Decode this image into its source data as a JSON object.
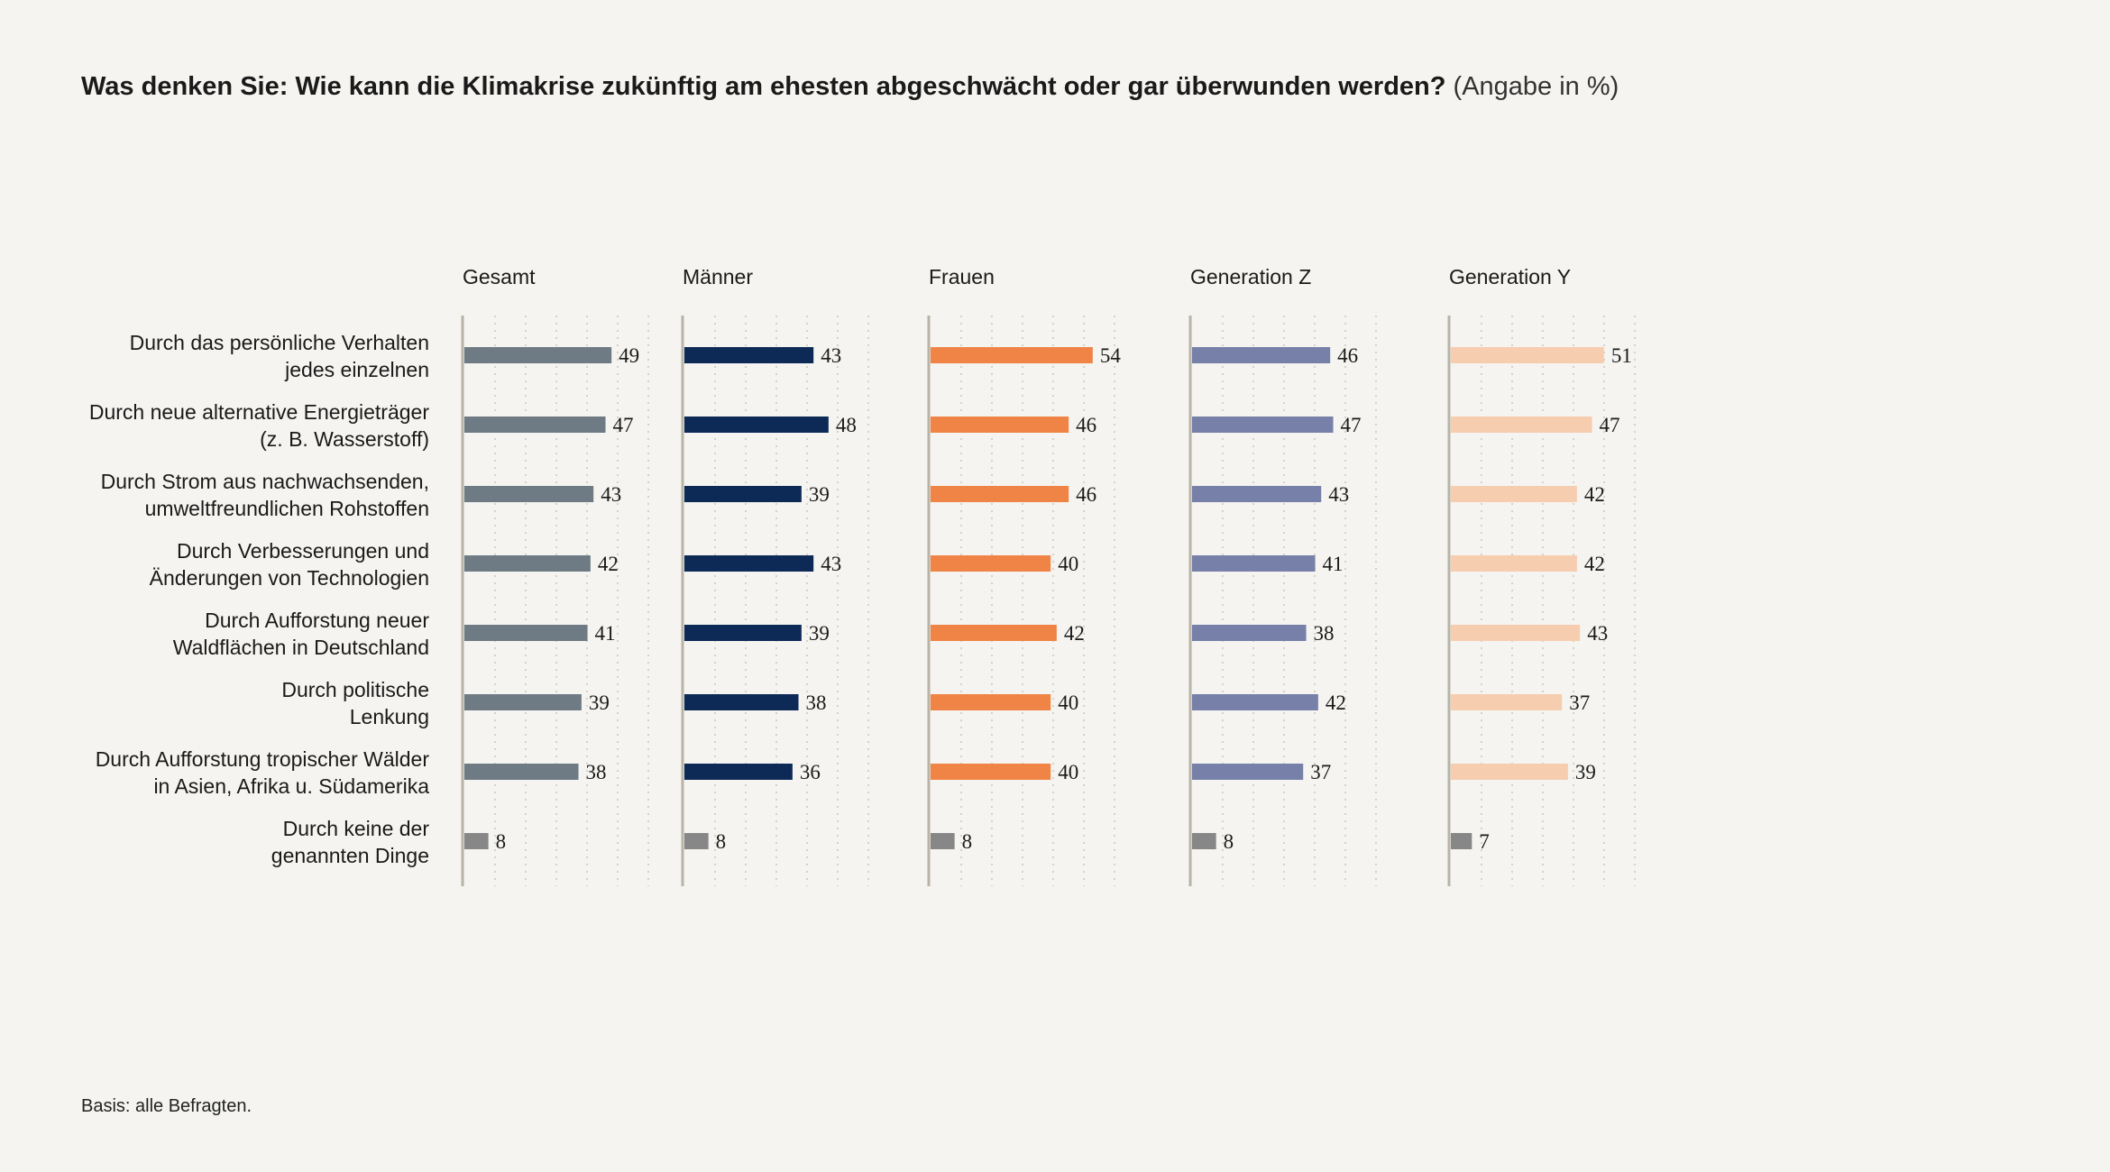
{
  "title": {
    "question": "Was denken Sie: Wie kann die Klimakrise zukünftig am ehesten abgeschwächt oder gar überwunden werden?",
    "unit": "(Angabe in %)"
  },
  "footnote": "Basis: alle Befragten.",
  "chart_data": {
    "type": "bar",
    "orientation": "horizontal",
    "grid": true,
    "categories": [
      [
        "Durch das persönliche Verhalten",
        "jedes einzelnen"
      ],
      [
        "Durch neue alternative Energieträger",
        "(z. B. Wasserstoff)"
      ],
      [
        "Durch Strom aus nachwachsenden,",
        "umweltfreundlichen Rohstoffen"
      ],
      [
        "Durch Verbesserungen und",
        "Änderungen von Technologien"
      ],
      [
        "Durch Aufforstung neuer",
        "Waldflächen in Deutschland"
      ],
      [
        "Durch politische",
        "Lenkung"
      ],
      [
        "Durch Aufforstung tropischer Wälder",
        "in Asien, Afrika u. Südamerika"
      ],
      [
        "Durch keine der",
        "genannten Dinge"
      ]
    ],
    "series": [
      {
        "name": "Gesamt",
        "color": "#6e7b84",
        "values": [
          49,
          47,
          43,
          42,
          41,
          39,
          38,
          8
        ]
      },
      {
        "name": "Männer",
        "color": "#0d2a57",
        "values": [
          43,
          48,
          39,
          43,
          39,
          38,
          36,
          8
        ]
      },
      {
        "name": "Frauen",
        "color": "#ef8446",
        "values": [
          54,
          46,
          46,
          40,
          42,
          40,
          40,
          8
        ]
      },
      {
        "name": "Generation Z",
        "color": "#7680a8",
        "values": [
          46,
          47,
          43,
          41,
          38,
          42,
          37,
          8
        ]
      },
      {
        "name": "Generation Y",
        "color": "#f7cdb0",
        "values": [
          51,
          47,
          42,
          42,
          43,
          37,
          39,
          7
        ]
      }
    ],
    "last_category_color": "#878787"
  }
}
